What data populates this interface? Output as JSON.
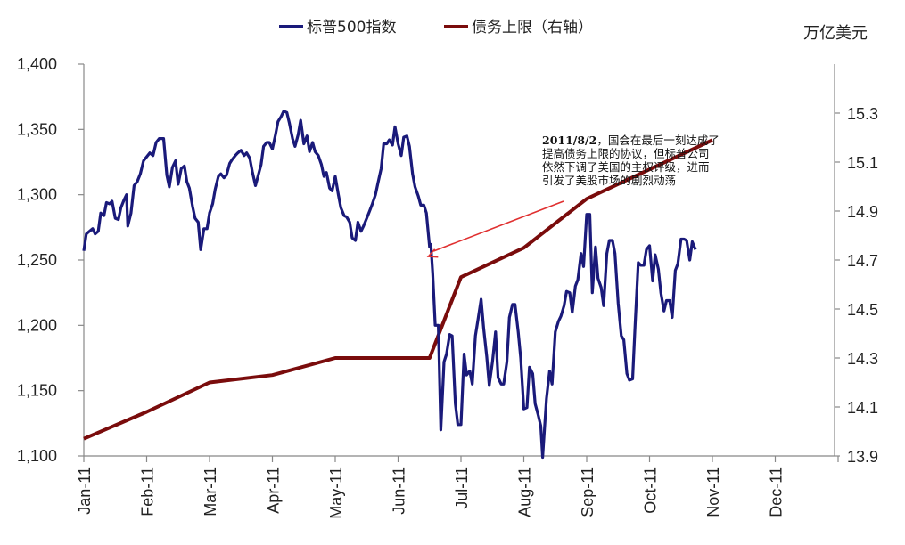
{
  "chart_data": {
    "type": "line",
    "legend_position": "top-center",
    "unit_right": "万亿美元",
    "x_ticks": [
      "Jan-11",
      "Feb-11",
      "Mar-11",
      "Apr-11",
      "May-11",
      "Jun-11",
      "Jul-11",
      "Aug-11",
      "Sep-11",
      "Oct-11",
      "Nov-11",
      "Dec-11"
    ],
    "y_left": {
      "min": 1100,
      "max": 1400,
      "ticks": [
        "1,100",
        "1,150",
        "1,200",
        "1,250",
        "1,300",
        "1,350",
        "1,400"
      ]
    },
    "y_right": {
      "min": 13.9,
      "max": 15.5,
      "ticks": [
        "13.9",
        "14.1",
        "14.3",
        "14.5",
        "14.7",
        "14.9",
        "15.1",
        "15.3"
      ]
    },
    "x_range_months": [
      0,
      12
    ],
    "series": [
      {
        "name": "标普500指数",
        "axis": "left",
        "color": "#1a1a7a",
        "points": [
          [
            0.0,
            1257
          ],
          [
            0.04,
            1270
          ],
          [
            0.09,
            1272
          ],
          [
            0.14,
            1274
          ],
          [
            0.18,
            1270
          ],
          [
            0.23,
            1272
          ],
          [
            0.27,
            1286
          ],
          [
            0.32,
            1284
          ],
          [
            0.36,
            1294
          ],
          [
            0.41,
            1293
          ],
          [
            0.45,
            1295
          ],
          [
            0.5,
            1282
          ],
          [
            0.55,
            1281
          ],
          [
            0.59,
            1290
          ],
          [
            0.64,
            1296
          ],
          [
            0.68,
            1300
          ],
          [
            0.7,
            1276
          ],
          [
            0.75,
            1286
          ],
          [
            0.8,
            1307
          ],
          [
            0.85,
            1310
          ],
          [
            0.9,
            1316
          ],
          [
            0.95,
            1326
          ],
          [
            1.0,
            1329
          ],
          [
            1.05,
            1332
          ],
          [
            1.1,
            1330
          ],
          [
            1.15,
            1340
          ],
          [
            1.2,
            1343
          ],
          [
            1.27,
            1343
          ],
          [
            1.32,
            1315
          ],
          [
            1.36,
            1306
          ],
          [
            1.41,
            1321
          ],
          [
            1.46,
            1326
          ],
          [
            1.5,
            1308
          ],
          [
            1.55,
            1320
          ],
          [
            1.6,
            1322
          ],
          [
            1.64,
            1310
          ],
          [
            1.68,
            1305
          ],
          [
            1.73,
            1291
          ],
          [
            1.77,
            1282
          ],
          [
            1.82,
            1279
          ],
          [
            1.86,
            1258
          ],
          [
            1.91,
            1274
          ],
          [
            1.96,
            1274
          ],
          [
            2.0,
            1286
          ],
          [
            2.05,
            1293
          ],
          [
            2.09,
            1304
          ],
          [
            2.14,
            1314
          ],
          [
            2.18,
            1316
          ],
          [
            2.23,
            1313
          ],
          [
            2.27,
            1315
          ],
          [
            2.32,
            1324
          ],
          [
            2.36,
            1327
          ],
          [
            2.41,
            1330
          ],
          [
            2.45,
            1332
          ],
          [
            2.5,
            1334
          ],
          [
            2.55,
            1330
          ],
          [
            2.59,
            1332
          ],
          [
            2.64,
            1328
          ],
          [
            2.68,
            1318
          ],
          [
            2.73,
            1307
          ],
          [
            2.77,
            1314
          ],
          [
            2.82,
            1323
          ],
          [
            2.86,
            1337
          ],
          [
            2.91,
            1340
          ],
          [
            2.95,
            1340
          ],
          [
            3.0,
            1335
          ],
          [
            3.05,
            1346
          ],
          [
            3.09,
            1356
          ],
          [
            3.14,
            1360
          ],
          [
            3.18,
            1364
          ],
          [
            3.23,
            1363
          ],
          [
            3.27,
            1355
          ],
          [
            3.32,
            1343
          ],
          [
            3.36,
            1337
          ],
          [
            3.41,
            1346
          ],
          [
            3.45,
            1357
          ],
          [
            3.5,
            1339
          ],
          [
            3.55,
            1345
          ],
          [
            3.59,
            1333
          ],
          [
            3.64,
            1340
          ],
          [
            3.68,
            1333
          ],
          [
            3.73,
            1330
          ],
          [
            3.78,
            1323
          ],
          [
            3.82,
            1314
          ],
          [
            3.86,
            1317
          ],
          [
            3.91,
            1305
          ],
          [
            3.95,
            1303
          ],
          [
            4.0,
            1314
          ],
          [
            4.05,
            1300
          ],
          [
            4.09,
            1290
          ],
          [
            4.14,
            1284
          ],
          [
            4.18,
            1283
          ],
          [
            4.23,
            1279
          ],
          [
            4.27,
            1267
          ],
          [
            4.32,
            1265
          ],
          [
            4.36,
            1279
          ],
          [
            4.41,
            1272
          ],
          [
            4.45,
            1276
          ],
          [
            4.5,
            1282
          ],
          [
            4.55,
            1288
          ],
          [
            4.59,
            1293
          ],
          [
            4.64,
            1300
          ],
          [
            4.68,
            1309
          ],
          [
            4.73,
            1320
          ],
          [
            4.77,
            1339
          ],
          [
            4.82,
            1339
          ],
          [
            4.86,
            1342
          ],
          [
            4.91,
            1338
          ],
          [
            4.95,
            1352
          ],
          [
            5.0,
            1339
          ],
          [
            5.05,
            1330
          ],
          [
            5.09,
            1344
          ],
          [
            5.14,
            1345
          ],
          [
            5.18,
            1337
          ],
          [
            5.23,
            1316
          ],
          [
            5.27,
            1306
          ],
          [
            5.32,
            1299
          ],
          [
            5.36,
            1292
          ],
          [
            5.41,
            1292
          ],
          [
            5.45,
            1286
          ],
          [
            5.5,
            1260
          ],
          [
            5.52,
            1262
          ],
          [
            5.55,
            1240
          ],
          [
            5.59,
            1200
          ],
          [
            5.64,
            1200
          ],
          [
            5.68,
            1120
          ],
          [
            5.73,
            1172
          ],
          [
            5.77,
            1178
          ],
          [
            5.82,
            1193
          ],
          [
            5.86,
            1192
          ],
          [
            5.91,
            1140
          ],
          [
            5.95,
            1124
          ],
          [
            6.0,
            1124
          ],
          [
            6.05,
            1178
          ],
          [
            6.09,
            1162
          ],
          [
            6.14,
            1165
          ],
          [
            6.18,
            1155
          ],
          [
            6.23,
            1192
          ],
          [
            6.27,
            1204
          ],
          [
            6.32,
            1220
          ],
          [
            6.36,
            1198
          ],
          [
            6.41,
            1176
          ],
          [
            6.45,
            1154
          ],
          [
            6.5,
            1172
          ],
          [
            6.55,
            1195
          ],
          [
            6.59,
            1160
          ],
          [
            6.64,
            1155
          ],
          [
            6.68,
            1155
          ],
          [
            6.73,
            1172
          ],
          [
            6.77,
            1206
          ],
          [
            6.82,
            1216
          ],
          [
            6.86,
            1216
          ],
          [
            6.91,
            1195
          ],
          [
            6.95,
            1175
          ],
          [
            7.0,
            1136
          ],
          [
            7.05,
            1137
          ],
          [
            7.09,
            1168
          ],
          [
            7.14,
            1163
          ],
          [
            7.18,
            1140
          ],
          [
            7.23,
            1131
          ],
          [
            7.27,
            1123
          ],
          [
            7.3,
            1099
          ],
          [
            7.36,
            1144
          ],
          [
            7.41,
            1165
          ],
          [
            7.45,
            1155
          ],
          [
            7.5,
            1195
          ],
          [
            7.55,
            1203
          ],
          [
            7.59,
            1207
          ],
          [
            7.64,
            1215
          ],
          [
            7.68,
            1226
          ],
          [
            7.73,
            1225
          ],
          [
            7.77,
            1210
          ],
          [
            7.82,
            1230
          ],
          [
            7.86,
            1235
          ],
          [
            7.91,
            1255
          ],
          [
            7.95,
            1245
          ],
          [
            8.0,
            1285
          ],
          [
            8.05,
            1285
          ],
          [
            8.09,
            1225
          ],
          [
            8.14,
            1260
          ],
          [
            8.18,
            1236
          ],
          [
            8.23,
            1229
          ],
          [
            8.27,
            1215
          ],
          [
            8.32,
            1255
          ],
          [
            8.36,
            1265
          ],
          [
            8.41,
            1265
          ],
          [
            8.45,
            1255
          ],
          [
            8.5,
            1217
          ],
          [
            8.55,
            1192
          ],
          [
            8.59,
            1189
          ],
          [
            8.64,
            1163
          ],
          [
            8.68,
            1158
          ],
          [
            8.73,
            1159
          ],
          [
            8.77,
            1200
          ],
          [
            8.82,
            1248
          ],
          [
            8.86,
            1246
          ],
          [
            8.91,
            1246
          ],
          [
            8.95,
            1258
          ],
          [
            9.0,
            1261
          ],
          [
            9.05,
            1234
          ],
          [
            9.09,
            1254
          ],
          [
            9.14,
            1243
          ],
          [
            9.18,
            1225
          ],
          [
            9.23,
            1211
          ],
          [
            9.27,
            1219
          ],
          [
            9.32,
            1219
          ],
          [
            9.36,
            1206
          ],
          [
            9.41,
            1242
          ],
          [
            9.45,
            1247
          ],
          [
            9.5,
            1266
          ],
          [
            9.55,
            1266
          ],
          [
            9.59,
            1265
          ],
          [
            9.64,
            1250
          ],
          [
            9.68,
            1264
          ],
          [
            9.73,
            1258
          ]
        ]
      },
      {
        "name": "债务上限（右轴）",
        "axis": "right",
        "color": "#7a0c0c",
        "points": [
          [
            0.0,
            13.97
          ],
          [
            1.0,
            14.08
          ],
          [
            2.0,
            14.2
          ],
          [
            3.0,
            14.23
          ],
          [
            4.0,
            14.3
          ],
          [
            5.0,
            14.3
          ],
          [
            5.5,
            14.3
          ],
          [
            6.0,
            14.63
          ],
          [
            7.0,
            14.75
          ],
          [
            8.0,
            14.95
          ],
          [
            9.0,
            15.07
          ],
          [
            10.0,
            15.19
          ]
        ]
      }
    ],
    "annotation": {
      "lines": [
        {
          "bold": "2011/8/2",
          "text": "，国会在最后一刻达成了"
        },
        {
          "bold": "",
          "text": "提高债务上限的协议，但标普公司"
        },
        {
          "bold": "",
          "text": "依然下调了美国的主权评级，进而"
        },
        {
          "bold": "",
          "text": "引发了美股市场的剧烈动荡"
        }
      ],
      "arrow_target": [
        5.48,
        1250
      ],
      "color": "#e03030"
    }
  }
}
